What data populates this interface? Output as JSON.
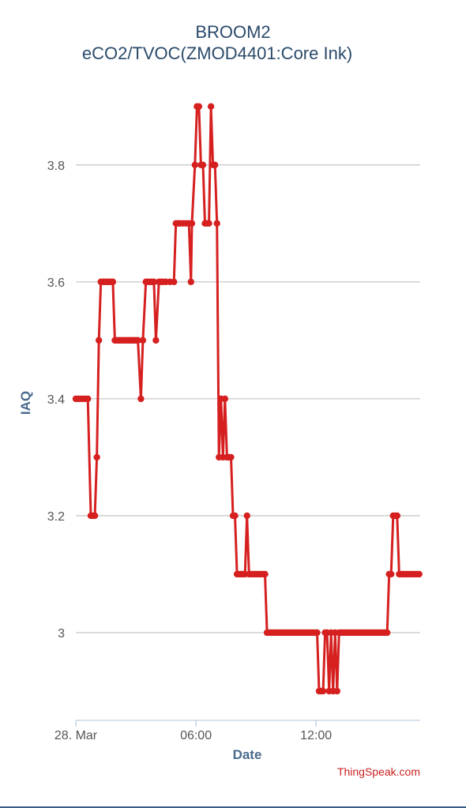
{
  "chart_data": {
    "type": "line",
    "title": "BROOM2",
    "subtitle": "eCO2/TVOC(ZMOD4401:Core Ink)",
    "xlabel": "Date",
    "ylabel": "IAQ",
    "credit": "ThingSpeak.com",
    "xlim": [
      0,
      17.2
    ],
    "ylim": [
      2.85,
      3.92
    ],
    "x_ticks": [
      {
        "value": 0,
        "label": "28. Mar"
      },
      {
        "value": 6,
        "label": "06:00"
      },
      {
        "value": 12,
        "label": "12:00"
      }
    ],
    "y_ticks": [
      {
        "value": 3.0,
        "label": "3"
      },
      {
        "value": 3.2,
        "label": "3.2"
      },
      {
        "value": 3.4,
        "label": "3.4"
      },
      {
        "value": 3.6,
        "label": "3.6"
      },
      {
        "value": 3.8,
        "label": "3.8"
      }
    ],
    "grid": true,
    "legend": "none",
    "series_color": "#d62020",
    "series": [
      {
        "x": [
          0.0,
          0.15,
          0.3,
          0.45,
          0.6,
          0.75,
          0.85,
          0.95,
          1.05,
          1.15,
          1.25,
          1.35,
          1.45,
          1.55,
          1.65,
          1.75,
          1.85,
          1.95,
          2.0,
          2.1,
          2.2,
          2.3,
          2.4,
          2.5,
          2.6,
          2.7,
          2.8,
          2.9,
          3.0,
          3.1,
          3.25,
          3.35,
          3.5,
          3.6,
          3.7,
          3.8,
          3.9,
          4.0,
          4.15,
          4.25,
          4.35,
          4.5,
          4.7,
          4.9,
          5.0,
          5.1,
          5.2,
          5.35,
          5.5,
          5.65,
          5.75,
          5.8,
          5.95,
          6.05,
          6.15,
          6.25,
          6.35,
          6.45,
          6.55,
          6.65,
          6.75,
          6.85,
          6.95,
          7.05,
          7.15,
          7.25,
          7.35,
          7.45,
          7.55,
          7.65,
          7.75,
          7.85,
          7.95,
          8.05,
          8.15,
          8.25,
          8.35,
          8.45,
          8.55,
          8.65,
          8.75,
          8.85,
          8.95,
          9.05,
          9.15,
          9.25,
          9.35,
          9.45,
          9.55,
          9.65,
          9.75,
          9.85,
          9.95,
          10.05,
          10.15,
          10.25,
          10.35,
          10.45,
          10.55,
          10.65,
          10.75,
          10.85,
          10.95,
          11.05,
          11.15,
          11.25,
          11.35,
          11.45,
          11.55,
          11.65,
          11.75,
          11.85,
          11.95,
          12.05,
          12.15,
          12.25,
          12.35,
          12.45,
          12.55,
          12.65,
          12.75,
          12.85,
          12.95,
          13.05,
          13.15,
          13.25,
          13.35,
          13.45,
          13.55,
          13.65,
          13.75,
          13.85,
          13.95,
          14.05,
          14.15,
          14.25,
          14.35,
          14.45,
          14.55,
          14.65,
          14.75,
          14.85,
          14.95,
          15.05,
          15.15,
          15.25,
          15.35,
          15.45,
          15.55,
          15.65,
          15.75,
          15.85,
          15.95,
          16.05,
          16.15,
          16.25,
          16.35,
          16.45,
          16.55,
          16.65,
          16.75,
          16.85,
          16.95,
          17.05,
          17.15
        ],
        "y": [
          3.4,
          3.4,
          3.4,
          3.4,
          3.4,
          3.2,
          3.2,
          3.2,
          3.3,
          3.5,
          3.6,
          3.6,
          3.6,
          3.6,
          3.6,
          3.6,
          3.6,
          3.5,
          3.5,
          3.5,
          3.5,
          3.5,
          3.5,
          3.5,
          3.5,
          3.5,
          3.5,
          3.5,
          3.5,
          3.5,
          3.4,
          3.5,
          3.6,
          3.6,
          3.6,
          3.6,
          3.6,
          3.5,
          3.6,
          3.6,
          3.6,
          3.6,
          3.6,
          3.6,
          3.7,
          3.7,
          3.7,
          3.7,
          3.7,
          3.7,
          3.6,
          3.7,
          3.8,
          3.9,
          3.9,
          3.8,
          3.8,
          3.7,
          3.7,
          3.7,
          3.9,
          3.8,
          3.8,
          3.7,
          3.3,
          3.4,
          3.3,
          3.4,
          3.3,
          3.3,
          3.3,
          3.2,
          3.2,
          3.1,
          3.1,
          3.1,
          3.1,
          3.1,
          3.2,
          3.1,
          3.1,
          3.1,
          3.1,
          3.1,
          3.1,
          3.1,
          3.1,
          3.1,
          3.0,
          3.0,
          3.0,
          3.0,
          3.0,
          3.0,
          3.0,
          3.0,
          3.0,
          3.0,
          3.0,
          3.0,
          3.0,
          3.0,
          3.0,
          3.0,
          3.0,
          3.0,
          3.0,
          3.0,
          3.0,
          3.0,
          3.0,
          3.0,
          3.0,
          3.0,
          2.9,
          2.9,
          2.9,
          3.0,
          3.0,
          2.9,
          3.0,
          2.9,
          3.0,
          2.9,
          3.0,
          3.0,
          3.0,
          3.0,
          3.0,
          3.0,
          3.0,
          3.0,
          3.0,
          3.0,
          3.0,
          3.0,
          3.0,
          3.0,
          3.0,
          3.0,
          3.0,
          3.0,
          3.0,
          3.0,
          3.0,
          3.0,
          3.0,
          3.0,
          3.0,
          3.1,
          3.1,
          3.2,
          3.2,
          3.2,
          3.1,
          3.1,
          3.1,
          3.1,
          3.1,
          3.1,
          3.1,
          3.1,
          3.1,
          3.1,
          3.1
        ]
      }
    ]
  }
}
